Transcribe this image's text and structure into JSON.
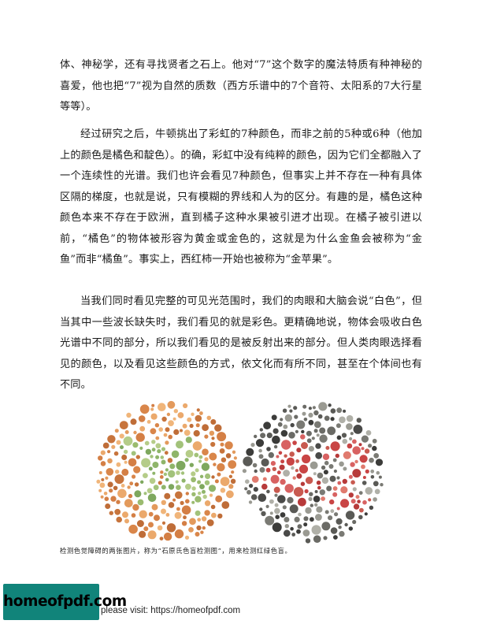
{
  "paragraphs": [
    "体、神秘学，还有寻找贤者之石上。他对“7”这个数字的魔法特质有种神秘的喜爱，他也把“7”视为自然的质数（西方乐谱中的7个音符、太阳系的7大行星等等）。",
    "经过研究之后，牛顿挑出了彩虹的7种颜色，而非之前的5种或6种（他加上的颜色是橘色和靛色）。的确，彩虹中没有纯粹的颜色，因为它们全都融入了一个连续性的光谱。我们也许会看见7种颜色，但事实上并不存在一种有具体区隔的梯度，也就是说，只有模糊的界线和人为的区分。有趣的是，橘色这种颜色本来不存在于欧洲，直到橘子这种水果被引进才出现。在橘子被引进以前，“橘色”的物体被形容为黄金或金色的，这就是为什么金鱼会被称为“金鱼”而非“橘鱼”。事实上，西红柿一开始也被称为“金苹果”。",
    "当我们同时看见完整的可见光范围时，我们的肉眼和大脑会说“白色”，但当其中一些波长缺失时，我们看见的就是彩色。更精确地说，物体会吸收白色光谱中不同的部分，所以我们看见的是被反射出来的部分。但人类肉眼选择看见的颜色，以及看见这些颜色的方式，依文化而有所不同，甚至在个体间也有不同。"
  ],
  "figure": {
    "caption": "检测色觉障碍的两张图片，称为“石原氏色盲检测图”，用来检测红绿色盲。",
    "plate_left": {
      "background_colors": [
        "#d9864a",
        "#e39a5c",
        "#c7743c",
        "#eba96c",
        "#d47f45",
        "#f0b57a",
        "#bf6d38"
      ],
      "figure_colors": [
        "#8fb56a",
        "#a2c27a",
        "#7ea85e",
        "#b5cc88",
        "#9bbb6f"
      ]
    },
    "plate_right": {
      "background_colors": [
        "#3c3c3a",
        "#5a5a56",
        "#7a7a74",
        "#9a9a92",
        "#4a4a48",
        "#6b6b66",
        "#b0b0a8"
      ],
      "figure_colors": [
        "#c94545",
        "#d86262",
        "#b73a3a",
        "#e07a6e",
        "#c85a50"
      ]
    }
  },
  "footer": {
    "logo_text": "homeofpdf.com",
    "text": "please visit: https://homeofpdf.com"
  }
}
